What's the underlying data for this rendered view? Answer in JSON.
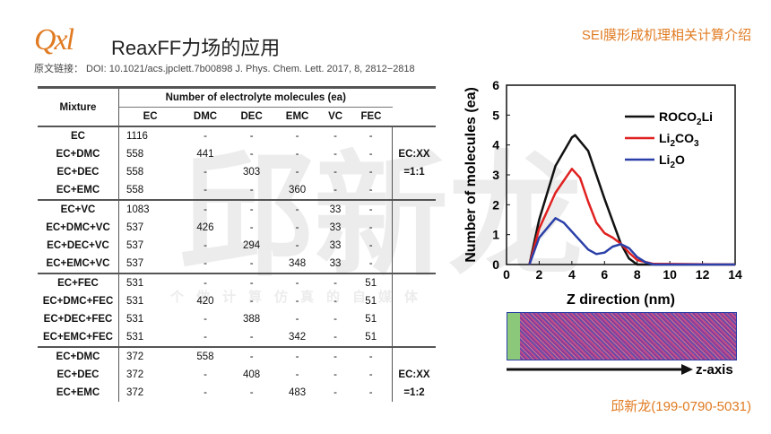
{
  "header": {
    "logo": "Qxl",
    "title": "ReaxFF力场的应用",
    "top_right": "SEI膜形成机理相关计算介绍",
    "doi": "原文链接：  DOI: 10.1021/acs.jpclett.7b00898  J. Phys. Chem. Lett. 2017,  8,   2812−2818"
  },
  "watermark": {
    "big": "邱新龙",
    "small": "个做计算仿真的自媒体"
  },
  "table": {
    "mixture_header": "Mixture",
    "group_header": "Number of electrolyte molecules (ea)",
    "columns": [
      "EC",
      "DMC",
      "DEC",
      "EMC",
      "VC",
      "FEC"
    ],
    "groups": [
      {
        "note": [
          "EC:XX",
          "=1:1"
        ],
        "rows": [
          [
            "EC",
            "1116",
            "-",
            "-",
            "-",
            "-",
            "-"
          ],
          [
            "EC+DMC",
            "558",
            "441",
            "-",
            "-",
            "-",
            "-"
          ],
          [
            "EC+DEC",
            "558",
            "-",
            "303",
            "-",
            "-",
            "-"
          ],
          [
            "EC+EMC",
            "558",
            "-",
            "-",
            "360",
            "-",
            "-"
          ]
        ]
      },
      {
        "note": [],
        "rows": [
          [
            "EC+VC",
            "1083",
            "-",
            "-",
            "-",
            "33",
            "-"
          ],
          [
            "EC+DMC+VC",
            "537",
            "426",
            "-",
            "-",
            "33",
            "-"
          ],
          [
            "EC+DEC+VC",
            "537",
            "-",
            "294",
            "-",
            "33",
            "-"
          ],
          [
            "EC+EMC+VC",
            "537",
            "-",
            "-",
            "348",
            "33",
            "-"
          ]
        ]
      },
      {
        "note": [],
        "rows": [
          [
            "EC+FEC",
            "531",
            "-",
            "-",
            "-",
            "-",
            "51"
          ],
          [
            "EC+DMC+FEC",
            "531",
            "420",
            "-",
            "-",
            "-",
            "51"
          ],
          [
            "EC+DEC+FEC",
            "531",
            "-",
            "388",
            "-",
            "-",
            "51"
          ],
          [
            "EC+EMC+FEC",
            "531",
            "-",
            "-",
            "342",
            "-",
            "51"
          ]
        ]
      },
      {
        "note": [
          "EC:XX",
          "=1:2"
        ],
        "rows": [
          [
            "EC+DMC",
            "372",
            "558",
            "-",
            "-",
            "-",
            "-"
          ],
          [
            "EC+DEC",
            "372",
            "-",
            "408",
            "-",
            "-",
            "-"
          ],
          [
            "EC+EMC",
            "372",
            "-",
            "-",
            "483",
            "-",
            "-"
          ]
        ]
      }
    ]
  },
  "chart_data": {
    "type": "line",
    "xlabel": "Z direction (nm)",
    "ylabel": "Number of molecules (ea)",
    "xlim": [
      0,
      14
    ],
    "ylim": [
      0,
      6
    ],
    "xticks": [
      0,
      2,
      4,
      6,
      8,
      10,
      12,
      14
    ],
    "yticks": [
      0,
      1,
      2,
      3,
      4,
      5,
      6
    ],
    "legend": "top-right",
    "series": [
      {
        "name": "ROCO2Li",
        "label_main": "ROCO",
        "sub": "2",
        "label_tail": "Li",
        "color": "#111111",
        "x": [
          1.4,
          2,
          3,
          4,
          4.2,
          5,
          6,
          7,
          7.5,
          8,
          14
        ],
        "y": [
          0,
          1.5,
          3.3,
          4.25,
          4.33,
          3.8,
          2.2,
          0.7,
          0.2,
          0,
          0
        ]
      },
      {
        "name": "Li2CO3",
        "label_main": "Li",
        "sub": "2",
        "label_tail": "CO",
        "sub2": "3",
        "color": "#e02020",
        "x": [
          1.4,
          2,
          3,
          4,
          4.5,
          5,
          5.5,
          6,
          6.5,
          7,
          7.5,
          8,
          9,
          14
        ],
        "y": [
          0,
          1.2,
          2.4,
          3.2,
          2.9,
          2.1,
          1.4,
          1.05,
          0.9,
          0.7,
          0.4,
          0.15,
          0.02,
          0
        ]
      },
      {
        "name": "Li2O",
        "label_main": "Li",
        "sub": "2",
        "label_tail": "O",
        "color": "#2a3fa8",
        "x": [
          1.4,
          2,
          3,
          3.5,
          4,
          5,
          5.5,
          6,
          6.5,
          7,
          7.5,
          8,
          8.5,
          9,
          14
        ],
        "y": [
          0,
          0.9,
          1.55,
          1.4,
          1.1,
          0.5,
          0.35,
          0.4,
          0.6,
          0.68,
          0.55,
          0.25,
          0.08,
          0,
          0
        ]
      }
    ]
  },
  "axis_label": "z-axis",
  "contact": "邱新龙(199-0790-5031)"
}
